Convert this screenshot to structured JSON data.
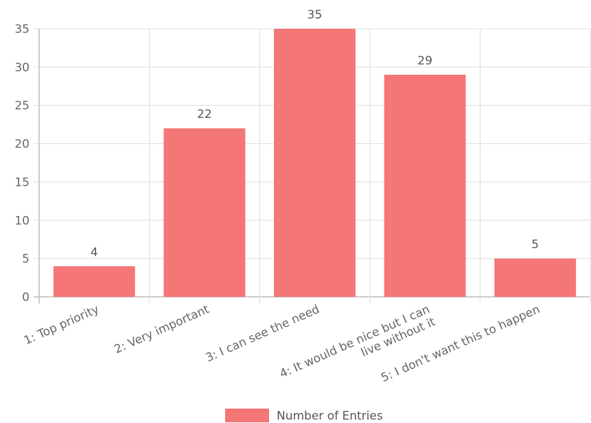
{
  "chart_data": {
    "type": "bar",
    "categories": [
      "1: Top priority",
      "2: Very important",
      "3: I can see the need",
      [
        "4: It would be nice but I can",
        "live without it"
      ],
      "5: I don't want this to happen"
    ],
    "series": [
      {
        "name": "Number of Entries",
        "values": [
          4,
          22,
          35,
          29,
          5
        ]
      }
    ],
    "ylim": [
      0,
      35
    ],
    "yticks": [
      0,
      5,
      10,
      15,
      20,
      25,
      30,
      35
    ],
    "grid": true,
    "legend": "bottom",
    "colors": {
      "bar": "#f47676"
    }
  },
  "legend": {
    "label": "Number of Entries"
  }
}
